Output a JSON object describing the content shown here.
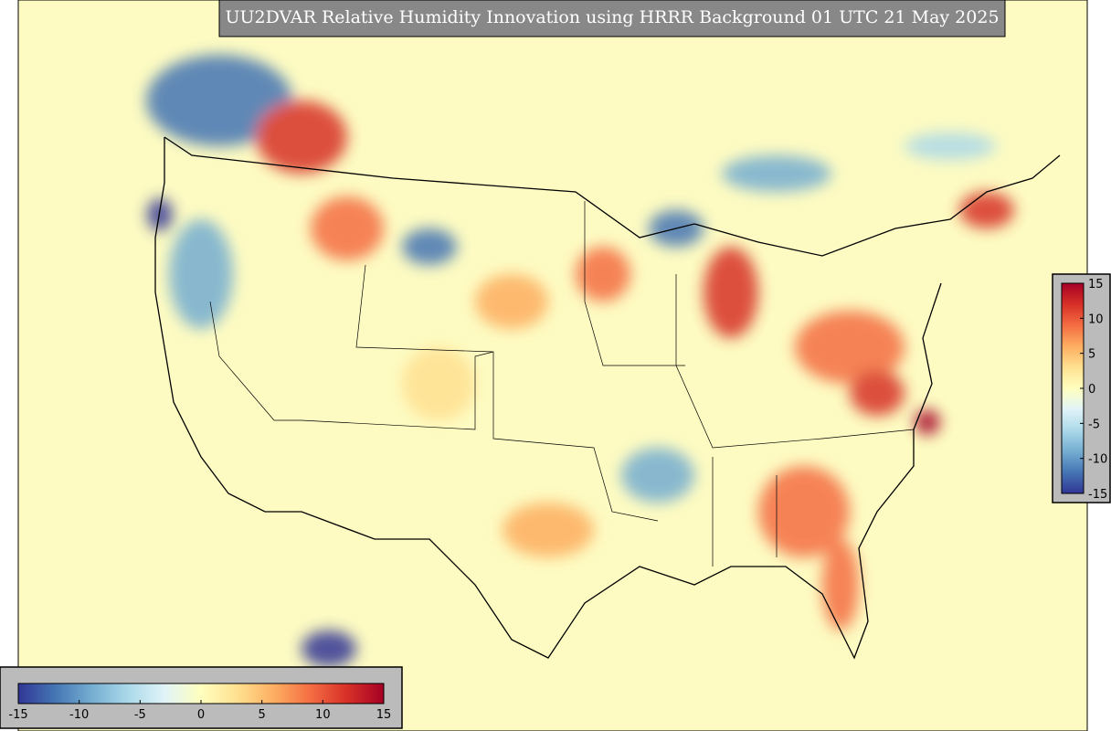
{
  "title": "UU2DVAR Relative Humidity Innovation using HRRR Background 01 UTC 21 May 2025",
  "colors": [
    "#313695",
    "#4575b4",
    "#74add1",
    "#abd9e9",
    "#e0f3f8",
    "#ffffbf",
    "#fee090",
    "#fdae61",
    "#f46d43",
    "#d73027",
    "#a50026"
  ],
  "colorbars": [
    {
      "orientation": "horizontal",
      "lim": [
        -15,
        15
      ],
      "ticks": [
        -15,
        -10,
        -5,
        0,
        5,
        10,
        15
      ]
    },
    {
      "orientation": "vertical",
      "lim": [
        -15,
        15
      ],
      "ticks": [
        15,
        10,
        5,
        0,
        -5,
        -10,
        -15
      ]
    }
  ]
}
